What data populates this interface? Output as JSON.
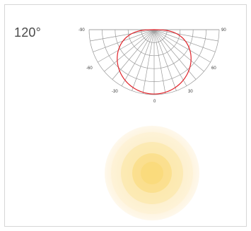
{
  "beam": {
    "angle_label": "120°",
    "ticks": {
      "neg90": "-90",
      "pos90": "90",
      "neg60": "-60",
      "pos60": "60",
      "neg30": "-30",
      "pos30": "30",
      "zero": "0"
    },
    "colors": {
      "grid": "#9a9a9a",
      "curve": "#e0232a",
      "spot_center": "#fbe08f",
      "spot_edge": "#fdf6e2"
    }
  }
}
